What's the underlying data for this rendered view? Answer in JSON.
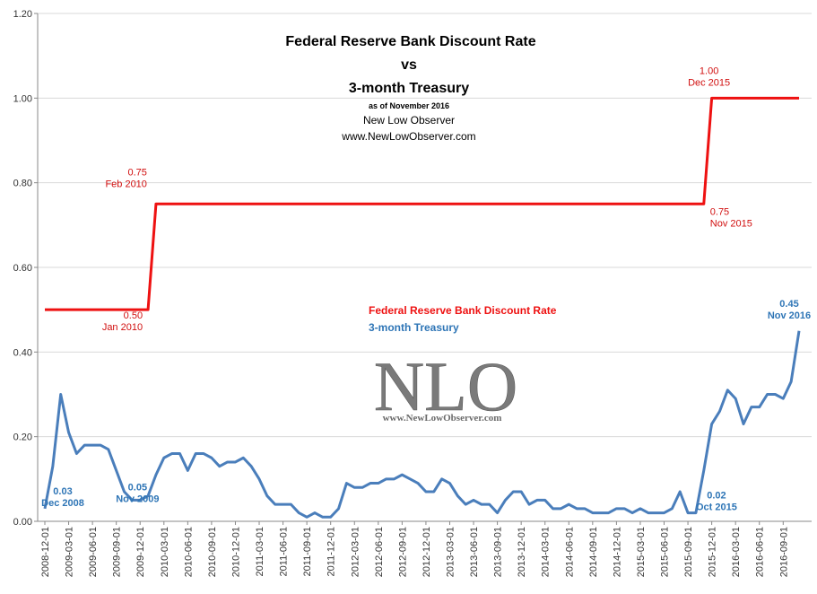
{
  "chart_data": {
    "type": "line",
    "title": "Federal Reserve Bank Discount Rate",
    "title_vs": "vs",
    "title_line3": "3-month Treasury",
    "subtitle_asof": "as of November 2016",
    "subtitle_source": "New Low Observer",
    "subtitle_url": "www.NewLowObserver.com",
    "watermark_logo": "NLO",
    "watermark_url": "www.NewLowObserver.com",
    "ylim": [
      0,
      1.2
    ],
    "y_ticks": [
      "0.00",
      "0.20",
      "0.40",
      "0.60",
      "0.80",
      "1.00",
      "1.20"
    ],
    "x_tick_labels": [
      "2008-12-01",
      "2009-03-01",
      "2009-06-01",
      "2009-09-01",
      "2009-12-01",
      "2010-03-01",
      "2010-06-01",
      "2010-09-01",
      "2010-12-01",
      "2011-03-01",
      "2011-06-01",
      "2011-09-01",
      "2011-12-01",
      "2012-03-01",
      "2012-06-01",
      "2012-09-01",
      "2012-12-01",
      "2013-03-01",
      "2013-06-01",
      "2013-09-01",
      "2013-12-01",
      "2014-03-01",
      "2014-06-01",
      "2014-09-01",
      "2014-12-01",
      "2015-03-01",
      "2015-06-01",
      "2015-09-01",
      "2015-12-01",
      "2016-03-01",
      "2016-06-01",
      "2016-09-01"
    ],
    "colors": {
      "discount": "#ee1111",
      "treasury": "#4a7ebb"
    },
    "legend": [
      {
        "label": "Federal Reserve Bank Discount Rate",
        "color": "#ee1111"
      },
      {
        "label": "3-month Treasury",
        "color": "#2e75b6"
      }
    ],
    "series": [
      {
        "name": "Federal Reserve Bank Discount Rate",
        "x": [
          "2008-12",
          "2009-01",
          "2009-02",
          "2009-03",
          "2009-04",
          "2009-05",
          "2009-06",
          "2009-07",
          "2009-08",
          "2009-09",
          "2009-10",
          "2009-11",
          "2009-12",
          "2010-01",
          "2010-02",
          "2010-03",
          "2010-04",
          "2010-05",
          "2010-06",
          "2010-07",
          "2010-08",
          "2010-09",
          "2010-10",
          "2010-11",
          "2010-12",
          "2011-01",
          "2011-02",
          "2011-03",
          "2011-04",
          "2011-05",
          "2011-06",
          "2011-07",
          "2011-08",
          "2011-09",
          "2011-10",
          "2011-11",
          "2011-12",
          "2012-01",
          "2012-02",
          "2012-03",
          "2012-04",
          "2012-05",
          "2012-06",
          "2012-07",
          "2012-08",
          "2012-09",
          "2012-10",
          "2012-11",
          "2012-12",
          "2013-01",
          "2013-02",
          "2013-03",
          "2013-04",
          "2013-05",
          "2013-06",
          "2013-07",
          "2013-08",
          "2013-09",
          "2013-10",
          "2013-11",
          "2013-12",
          "2014-01",
          "2014-02",
          "2014-03",
          "2014-04",
          "2014-05",
          "2014-06",
          "2014-07",
          "2014-08",
          "2014-09",
          "2014-10",
          "2014-11",
          "2014-12",
          "2015-01",
          "2015-02",
          "2015-03",
          "2015-04",
          "2015-05",
          "2015-06",
          "2015-07",
          "2015-08",
          "2015-09",
          "2015-10",
          "2015-11",
          "2015-12",
          "2016-01",
          "2016-02",
          "2016-03",
          "2016-04",
          "2016-05",
          "2016-06",
          "2016-07",
          "2016-08",
          "2016-09",
          "2016-10",
          "2016-11"
        ],
        "values": [
          0.5,
          0.5,
          0.5,
          0.5,
          0.5,
          0.5,
          0.5,
          0.5,
          0.5,
          0.5,
          0.5,
          0.5,
          0.5,
          0.5,
          0.75,
          0.75,
          0.75,
          0.75,
          0.75,
          0.75,
          0.75,
          0.75,
          0.75,
          0.75,
          0.75,
          0.75,
          0.75,
          0.75,
          0.75,
          0.75,
          0.75,
          0.75,
          0.75,
          0.75,
          0.75,
          0.75,
          0.75,
          0.75,
          0.75,
          0.75,
          0.75,
          0.75,
          0.75,
          0.75,
          0.75,
          0.75,
          0.75,
          0.75,
          0.75,
          0.75,
          0.75,
          0.75,
          0.75,
          0.75,
          0.75,
          0.75,
          0.75,
          0.75,
          0.75,
          0.75,
          0.75,
          0.75,
          0.75,
          0.75,
          0.75,
          0.75,
          0.75,
          0.75,
          0.75,
          0.75,
          0.75,
          0.75,
          0.75,
          0.75,
          0.75,
          0.75,
          0.75,
          0.75,
          0.75,
          0.75,
          0.75,
          0.75,
          0.75,
          0.75,
          1.0,
          1.0,
          1.0,
          1.0,
          1.0,
          1.0,
          1.0,
          1.0,
          1.0,
          1.0,
          1.0,
          1.0
        ]
      },
      {
        "name": "3-month Treasury",
        "x": [
          "2008-12",
          "2009-01",
          "2009-02",
          "2009-03",
          "2009-04",
          "2009-05",
          "2009-06",
          "2009-07",
          "2009-08",
          "2009-09",
          "2009-10",
          "2009-11",
          "2009-12",
          "2010-01",
          "2010-02",
          "2010-03",
          "2010-04",
          "2010-05",
          "2010-06",
          "2010-07",
          "2010-08",
          "2010-09",
          "2010-10",
          "2010-11",
          "2010-12",
          "2011-01",
          "2011-02",
          "2011-03",
          "2011-04",
          "2011-05",
          "2011-06",
          "2011-07",
          "2011-08",
          "2011-09",
          "2011-10",
          "2011-11",
          "2011-12",
          "2012-01",
          "2012-02",
          "2012-03",
          "2012-04",
          "2012-05",
          "2012-06",
          "2012-07",
          "2012-08",
          "2012-09",
          "2012-10",
          "2012-11",
          "2012-12",
          "2013-01",
          "2013-02",
          "2013-03",
          "2013-04",
          "2013-05",
          "2013-06",
          "2013-07",
          "2013-08",
          "2013-09",
          "2013-10",
          "2013-11",
          "2013-12",
          "2014-01",
          "2014-02",
          "2014-03",
          "2014-04",
          "2014-05",
          "2014-06",
          "2014-07",
          "2014-08",
          "2014-09",
          "2014-10",
          "2014-11",
          "2014-12",
          "2015-01",
          "2015-02",
          "2015-03",
          "2015-04",
          "2015-05",
          "2015-06",
          "2015-07",
          "2015-08",
          "2015-09",
          "2015-10",
          "2015-11",
          "2015-12",
          "2016-01",
          "2016-02",
          "2016-03",
          "2016-04",
          "2016-05",
          "2016-06",
          "2016-07",
          "2016-08",
          "2016-09",
          "2016-10",
          "2016-11"
        ],
        "values": [
          0.03,
          0.13,
          0.3,
          0.21,
          0.16,
          0.18,
          0.18,
          0.18,
          0.17,
          0.12,
          0.07,
          0.05,
          0.05,
          0.06,
          0.11,
          0.15,
          0.16,
          0.16,
          0.12,
          0.16,
          0.16,
          0.15,
          0.13,
          0.14,
          0.14,
          0.15,
          0.13,
          0.1,
          0.06,
          0.04,
          0.04,
          0.04,
          0.02,
          0.01,
          0.02,
          0.01,
          0.01,
          0.03,
          0.09,
          0.08,
          0.08,
          0.09,
          0.09,
          0.1,
          0.1,
          0.11,
          0.1,
          0.09,
          0.07,
          0.07,
          0.1,
          0.09,
          0.06,
          0.04,
          0.05,
          0.04,
          0.04,
          0.02,
          0.05,
          0.07,
          0.07,
          0.04,
          0.05,
          0.05,
          0.03,
          0.03,
          0.04,
          0.03,
          0.03,
          0.02,
          0.02,
          0.02,
          0.03,
          0.03,
          0.02,
          0.03,
          0.02,
          0.02,
          0.02,
          0.03,
          0.07,
          0.02,
          0.02,
          0.12,
          0.23,
          0.26,
          0.31,
          0.29,
          0.23,
          0.27,
          0.27,
          0.3,
          0.3,
          0.29,
          0.33,
          0.45
        ]
      }
    ],
    "annotations": [
      {
        "series": "discount",
        "index": 13,
        "value": "0.50",
        "date": "Jan 2010"
      },
      {
        "series": "discount",
        "index": 14,
        "value": "0.75",
        "date": "Feb 2010"
      },
      {
        "series": "discount",
        "index": 83,
        "value": "0.75",
        "date": "Nov 2015"
      },
      {
        "series": "discount",
        "index": 84,
        "value": "1.00",
        "date": "Dec 2015"
      },
      {
        "series": "treasury",
        "index": 0,
        "value": "0.03",
        "date": "Dec 2008"
      },
      {
        "series": "treasury",
        "index": 11,
        "value": "0.05",
        "date": "Nov 2009"
      },
      {
        "series": "treasury",
        "index": 82,
        "value": "0.02",
        "date": "Oct 2015"
      },
      {
        "series": "treasury",
        "index": 95,
        "value": "0.45",
        "date": "Nov 2016"
      }
    ]
  }
}
